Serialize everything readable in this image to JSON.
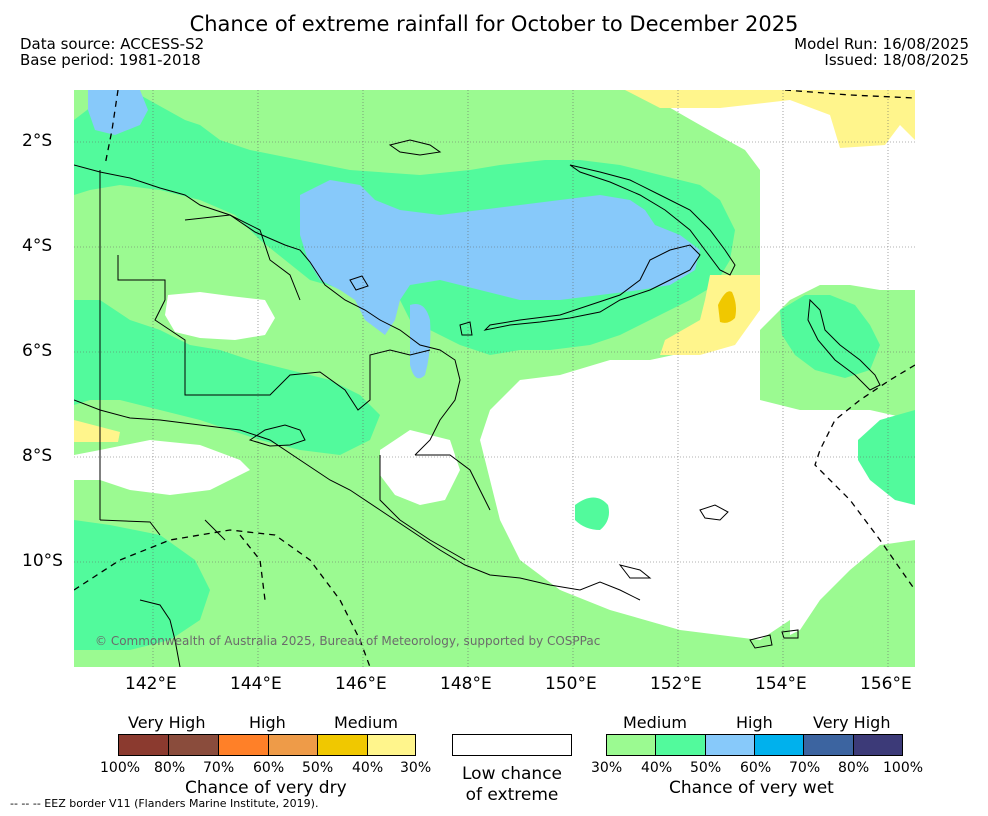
{
  "title": "Chance of extreme rainfall for October to December 2025",
  "meta": {
    "data_source": "Data source: ACCESS-S2",
    "base_period": "Base period: 1981-2018",
    "model_run": "Model Run: 16/08/2025",
    "issued": "Issued: 18/08/2025"
  },
  "map": {
    "lat_labels": [
      "2°S",
      "4°S",
      "6°S",
      "8°S",
      "10°S"
    ],
    "lon_labels": [
      "142°E",
      "144°E",
      "146°E",
      "148°E",
      "150°E",
      "152°E",
      "154°E",
      "156°E"
    ],
    "copyright": "© Commonwealth of Australia 2025, Bureau of Meteorology, supported by COSPPac"
  },
  "legend": {
    "dry": {
      "categories": [
        "Very High",
        "High",
        "Medium"
      ],
      "colors": [
        "#8b3a2f",
        "#8a4c3c",
        "#ff8028",
        "#ee9b48",
        "#f0c800",
        "#fff58c"
      ],
      "ticks": [
        "100%",
        "80%",
        "70%",
        "60%",
        "50%",
        "40%",
        "30%"
      ],
      "title": "Chance of very dry"
    },
    "low": {
      "title_line1": "Low chance",
      "title_line2": "of extreme",
      "color": "#ffffff"
    },
    "wet": {
      "categories": [
        "Medium",
        "High",
        "Very High"
      ],
      "colors": [
        "#9bfa91",
        "#52fa9c",
        "#87c9fa",
        "#00b1ed",
        "#3c64a0",
        "#3c3a78"
      ],
      "ticks": [
        "30%",
        "40%",
        "50%",
        "60%",
        "70%",
        "80%",
        "100%"
      ],
      "title": "Chance of very wet"
    }
  },
  "eez_note": "--  --  -- EEZ border V11 (Flanders Marine Institute, 2019)."
}
